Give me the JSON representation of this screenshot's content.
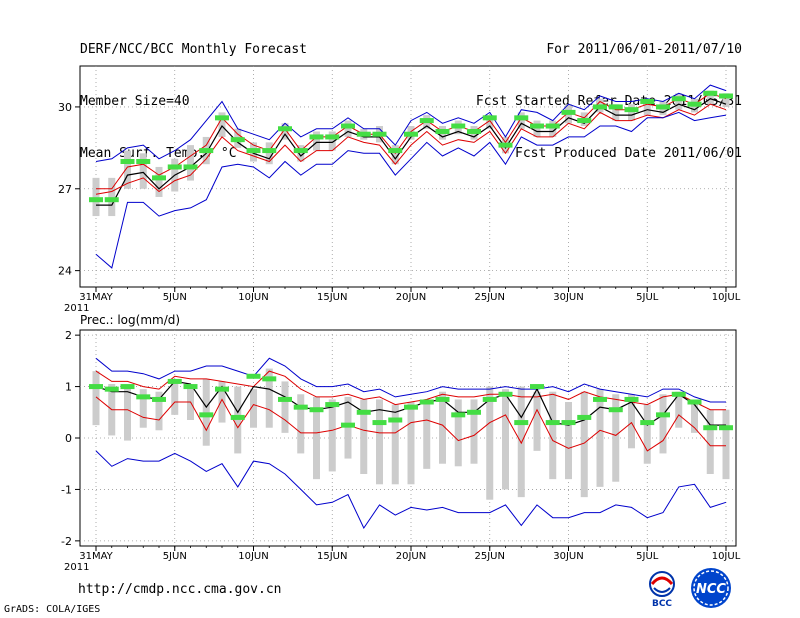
{
  "header": {
    "left": [
      "DERF/NCC/BCC Monthly Forecast",
      "Member Size=40",
      "Mean Surf. Temp.: °C"
    ],
    "right": [
      "For 2011/06/01-2011/07/10",
      "Fcst Started Refer Date 2011/05/31",
      "Fcst Produced Date 2011/06/01"
    ]
  },
  "footer": {
    "url": "http://cmdp.ncc.cma.gov.cn",
    "credit": "GrADS: COLA/IGES"
  },
  "logos": {
    "bcc": "BCC",
    "ncc": "NCC"
  },
  "colors": {
    "max_min": "#0000cc",
    "mean": "#000000",
    "obs_line": "#dd0000",
    "median": "#44dd44",
    "box": "#cccccc"
  },
  "chart_data": [
    {
      "type": "line",
      "title": "Mean Surf. Temp.: °C",
      "x_ticks": [
        "31MAY",
        "5JUN",
        "10JUN",
        "15JUN",
        "20JUN",
        "25JUN",
        "30JUN",
        "5JUL",
        "10JUL"
      ],
      "x_tick_year": "2011",
      "x_days": [
        0,
        1,
        2,
        3,
        4,
        5,
        6,
        7,
        8,
        9,
        10,
        11,
        12,
        13,
        14,
        15,
        16,
        17,
        18,
        19,
        20,
        21,
        22,
        23,
        24,
        25,
        26,
        27,
        28,
        29,
        30,
        31,
        32,
        33,
        34,
        35,
        36,
        37,
        38,
        39,
        40
      ],
      "y_ticks": [
        24,
        27,
        30
      ],
      "ylim": [
        23.4,
        31.5
      ],
      "series": [
        {
          "name": "max",
          "values": [
            28.0,
            28.1,
            28.5,
            28.6,
            28.1,
            28.4,
            28.8,
            29.5,
            30.2,
            29.2,
            29.0,
            28.8,
            29.4,
            28.9,
            29.2,
            29.2,
            29.6,
            29.2,
            29.2,
            28.6,
            29.5,
            29.8,
            29.4,
            29.6,
            29.4,
            29.8,
            28.9,
            29.9,
            29.8,
            29.5,
            30.1,
            29.9,
            30.4,
            30.2,
            30.2,
            30.3,
            30.2,
            30.5,
            30.3,
            30.8,
            30.6
          ]
        },
        {
          "name": "upper",
          "values": [
            27.0,
            27.0,
            27.8,
            27.9,
            27.5,
            27.8,
            28.2,
            28.6,
            29.6,
            29.0,
            28.6,
            28.4,
            29.2,
            28.4,
            28.9,
            28.9,
            29.3,
            29.0,
            29.0,
            28.3,
            29.1,
            29.5,
            29.1,
            29.3,
            29.1,
            29.5,
            28.7,
            29.6,
            29.3,
            29.3,
            29.8,
            29.6,
            30.2,
            29.9,
            29.9,
            30.1,
            30.0,
            30.3,
            30.1,
            30.5,
            30.3
          ]
        },
        {
          "name": "mean",
          "values": [
            26.4,
            26.4,
            27.5,
            27.6,
            27.0,
            27.5,
            27.8,
            28.3,
            29.3,
            28.7,
            28.3,
            28.1,
            29.0,
            28.2,
            28.7,
            28.7,
            29.1,
            28.9,
            28.9,
            28.1,
            28.9,
            29.3,
            28.9,
            29.1,
            28.9,
            29.3,
            28.5,
            29.4,
            29.1,
            29.1,
            29.6,
            29.4,
            30.0,
            29.7,
            29.7,
            29.9,
            29.8,
            30.1,
            29.9,
            30.3,
            30.1
          ]
        },
        {
          "name": "observed",
          "values": [
            26.8,
            26.9,
            27.2,
            27.4,
            26.9,
            27.3,
            27.5,
            28.1,
            28.9,
            28.4,
            28.2,
            28.0,
            28.6,
            28.0,
            28.4,
            28.4,
            28.9,
            28.7,
            28.6,
            27.9,
            28.6,
            29.1,
            28.6,
            28.8,
            28.7,
            29.1,
            28.3,
            29.2,
            28.9,
            28.9,
            29.4,
            29.2,
            29.8,
            29.5,
            29.5,
            29.7,
            29.6,
            29.9,
            29.7,
            30.1,
            29.9
          ]
        },
        {
          "name": "min",
          "values": [
            24.6,
            24.1,
            26.5,
            26.5,
            26.0,
            26.2,
            26.3,
            26.6,
            27.8,
            27.9,
            27.8,
            27.4,
            28.0,
            27.5,
            27.9,
            27.9,
            28.4,
            28.3,
            28.3,
            27.5,
            28.1,
            28.7,
            28.2,
            28.5,
            28.2,
            28.7,
            27.9,
            28.9,
            28.6,
            28.6,
            28.9,
            28.9,
            29.3,
            29.3,
            29.1,
            29.6,
            29.6,
            29.8,
            29.5,
            29.6,
            29.7
          ]
        },
        {
          "name": "median",
          "values": [
            26.6,
            26.6,
            28.0,
            28.0,
            27.4,
            27.8,
            27.8,
            28.4,
            29.6,
            28.8,
            28.4,
            28.4,
            29.2,
            28.4,
            28.9,
            28.9,
            29.3,
            29.0,
            29.0,
            28.4,
            29.0,
            29.5,
            29.1,
            29.3,
            29.1,
            29.6,
            28.6,
            29.6,
            29.3,
            29.3,
            29.8,
            29.5,
            30.0,
            30.0,
            29.9,
            30.2,
            30.0,
            30.3,
            30.1,
            30.5,
            30.4
          ]
        }
      ],
      "box_lo": [
        26.0,
        26.0,
        27.0,
        27.0,
        26.7,
        26.9,
        27.3,
        27.9,
        28.9,
        28.5,
        28.0,
        27.9,
        28.8,
        28.0,
        28.4,
        28.4,
        28.9,
        28.8,
        28.7,
        27.9,
        28.8,
        29.2,
        28.8,
        29.0,
        28.8,
        29.2,
        28.3,
        29.2,
        28.9,
        28.9,
        29.4,
        29.3,
        29.8,
        29.5,
        29.5,
        29.7,
        29.7,
        29.9,
        29.8,
        30.1,
        30.0
      ],
      "box_hi": [
        27.4,
        27.4,
        28.4,
        28.3,
        27.8,
        28.1,
        28.6,
        28.9,
        29.8,
        29.2,
        28.7,
        28.7,
        29.4,
        28.6,
        29.1,
        29.1,
        29.5,
        29.2,
        29.3,
        28.6,
        29.3,
        29.7,
        29.3,
        29.5,
        29.3,
        29.7,
        28.9,
        29.8,
        29.5,
        29.5,
        30.1,
        29.8,
        30.3,
        30.1,
        30.1,
        30.3,
        30.2,
        30.5,
        30.3,
        30.6,
        30.5
      ]
    },
    {
      "type": "line",
      "title": "Prec.: log(mm/d)",
      "x_ticks": [
        "31MAY",
        "5JUN",
        "10JUN",
        "15JUN",
        "20JUN",
        "25JUN",
        "30JUN",
        "5JUL",
        "10JUL"
      ],
      "x_tick_year": "2011",
      "y_ticks": [
        -2,
        -1,
        0,
        1,
        2
      ],
      "ylim": [
        -2.1,
        2.1
      ],
      "series": [
        {
          "name": "max",
          "values": [
            1.55,
            1.3,
            1.3,
            1.25,
            1.15,
            1.3,
            1.3,
            1.4,
            1.4,
            1.3,
            1.2,
            1.55,
            1.4,
            1.15,
            1.0,
            1.0,
            1.05,
            0.9,
            0.95,
            0.8,
            0.85,
            0.9,
            1.0,
            0.95,
            0.95,
            0.95,
            1.0,
            0.95,
            0.95,
            1.0,
            0.9,
            1.05,
            0.95,
            0.9,
            0.85,
            0.8,
            0.95,
            0.95,
            0.8,
            0.7,
            0.7
          ]
        },
        {
          "name": "upper",
          "values": [
            1.3,
            1.1,
            1.1,
            1.0,
            0.95,
            1.2,
            1.15,
            1.15,
            1.1,
            1.05,
            1.0,
            1.3,
            1.2,
            0.95,
            0.8,
            0.8,
            0.85,
            0.75,
            0.8,
            0.65,
            0.7,
            0.75,
            0.85,
            0.8,
            0.8,
            0.85,
            0.85,
            0.8,
            0.8,
            0.85,
            0.75,
            0.9,
            0.8,
            0.75,
            0.7,
            0.65,
            0.8,
            0.85,
            0.7,
            0.55,
            0.55
          ]
        },
        {
          "name": "mean",
          "values": [
            1.0,
            0.9,
            0.9,
            0.8,
            0.75,
            1.1,
            1.05,
            0.6,
            1.0,
            0.5,
            1.0,
            0.95,
            0.8,
            0.6,
            0.55,
            0.6,
            0.7,
            0.5,
            0.55,
            0.5,
            0.6,
            0.7,
            0.75,
            0.5,
            0.5,
            0.75,
            0.85,
            0.4,
            0.95,
            0.3,
            0.25,
            0.35,
            0.6,
            0.55,
            0.7,
            0.25,
            0.45,
            0.85,
            0.65,
            0.25,
            0.25
          ]
        },
        {
          "name": "observed",
          "values": [
            0.8,
            0.55,
            0.55,
            0.4,
            0.35,
            0.7,
            0.7,
            0.15,
            0.75,
            0.2,
            0.65,
            0.55,
            0.35,
            0.1,
            0.1,
            0.15,
            0.25,
            0.15,
            0.1,
            0.1,
            0.3,
            0.35,
            0.25,
            -0.05,
            0.05,
            0.3,
            0.45,
            -0.1,
            0.55,
            -0.05,
            -0.2,
            -0.1,
            0.15,
            0.05,
            0.3,
            -0.25,
            -0.05,
            0.45,
            0.2,
            -0.15,
            -0.15
          ]
        },
        {
          "name": "min",
          "values": [
            -0.25,
            -0.55,
            -0.4,
            -0.45,
            -0.45,
            -0.3,
            -0.45,
            -0.65,
            -0.5,
            -0.95,
            -0.45,
            -0.5,
            -0.7,
            -1.0,
            -1.3,
            -1.25,
            -1.1,
            -1.75,
            -1.3,
            -1.5,
            -1.35,
            -1.4,
            -1.35,
            -1.45,
            -1.45,
            -1.45,
            -1.3,
            -1.7,
            -1.3,
            -1.55,
            -1.55,
            -1.45,
            -1.45,
            -1.3,
            -1.35,
            -1.55,
            -1.45,
            -0.95,
            -0.9,
            -1.35,
            -1.25
          ]
        },
        {
          "name": "median",
          "values": [
            1.0,
            0.95,
            1.0,
            0.8,
            0.75,
            1.1,
            1.0,
            0.45,
            0.95,
            0.4,
            1.2,
            1.15,
            0.75,
            0.6,
            0.55,
            0.65,
            0.25,
            0.5,
            0.3,
            0.35,
            0.6,
            0.7,
            0.75,
            0.45,
            0.5,
            0.75,
            0.85,
            0.3,
            1.0,
            0.3,
            0.3,
            0.4,
            0.75,
            0.55,
            0.75,
            0.3,
            0.45,
            0.85,
            0.7,
            0.2,
            0.2
          ]
        }
      ],
      "box_lo": [
        0.25,
        0.05,
        -0.05,
        0.2,
        0.15,
        0.45,
        0.35,
        -0.15,
        0.3,
        -0.3,
        0.2,
        0.2,
        0.1,
        -0.3,
        -0.8,
        -0.65,
        -0.4,
        -0.7,
        -0.9,
        -0.9,
        -0.9,
        -0.6,
        -0.5,
        -0.55,
        -0.5,
        -1.2,
        -1.0,
        -1.15,
        -0.25,
        -0.8,
        -0.8,
        -1.15,
        -0.95,
        -0.85,
        -0.2,
        -0.5,
        -0.3,
        0.2,
        0.1,
        -0.7,
        -0.8
      ],
      "box_hi": [
        1.3,
        1.05,
        1.0,
        0.95,
        0.9,
        1.1,
        1.05,
        1.15,
        1.1,
        1.0,
        0.95,
        1.35,
        1.1,
        0.85,
        0.8,
        0.75,
        0.8,
        0.75,
        0.75,
        0.65,
        0.7,
        0.75,
        0.9,
        0.75,
        0.75,
        1.0,
        0.95,
        1.0,
        0.9,
        0.9,
        0.7,
        0.9,
        0.95,
        0.85,
        0.85,
        0.65,
        0.85,
        0.9,
        0.7,
        0.55,
        0.55
      ]
    }
  ]
}
